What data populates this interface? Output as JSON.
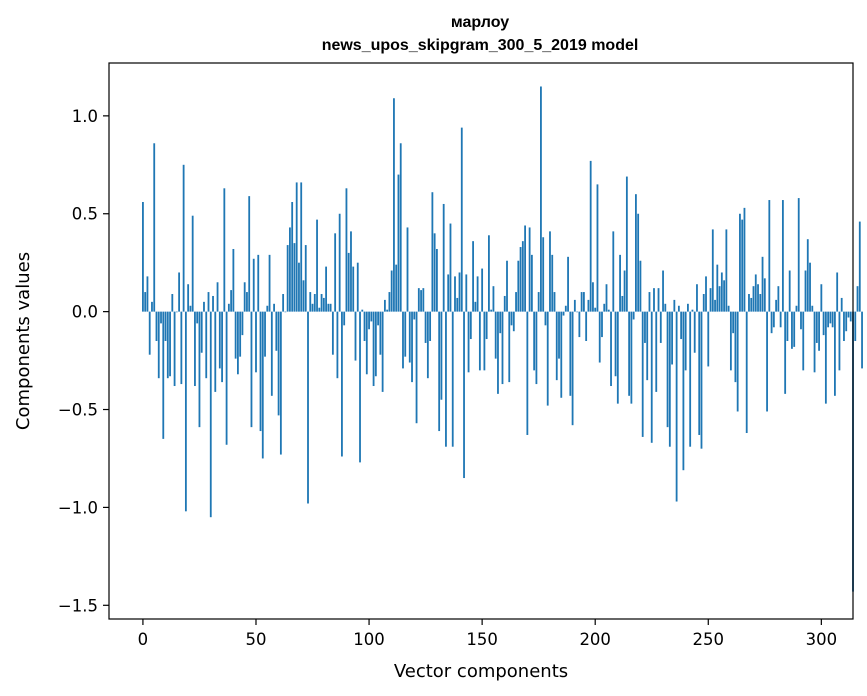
{
  "chart_data": {
    "type": "bar",
    "title_line1": "марлоу",
    "title_line2": "news_upos_skipgram_300_5_2019 model",
    "xlabel": "Vector components",
    "ylabel": "Components values",
    "xlim": [
      -15,
      314
    ],
    "ylim": [
      -1.57,
      1.27
    ],
    "xticks": [
      0,
      50,
      100,
      150,
      200,
      250,
      300
    ],
    "xtick_labels": [
      "0",
      "50",
      "100",
      "150",
      "200",
      "250",
      "300"
    ],
    "yticks": [
      -1.5,
      -1.0,
      -0.5,
      0.0,
      0.5,
      1.0
    ],
    "ytick_labels": [
      "−1.5",
      "−1.0",
      "−0.5",
      "0.0",
      "0.5",
      "1.0"
    ],
    "bar_color": "#1f77b4",
    "x_start": 0,
    "values": [
      0.56,
      0.1,
      0.18,
      -0.22,
      0.05,
      0.86,
      -0.15,
      -0.34,
      -0.06,
      -0.65,
      -0.15,
      -0.34,
      -0.33,
      0.09,
      -0.38,
      0.0,
      0.2,
      -0.37,
      0.75,
      -1.02,
      0.14,
      0.03,
      0.49,
      -0.38,
      -0.06,
      -0.59,
      -0.21,
      0.05,
      -0.34,
      0.1,
      -1.05,
      0.08,
      -0.41,
      0.15,
      -0.29,
      -0.36,
      0.63,
      -0.68,
      0.04,
      0.11,
      0.32,
      -0.24,
      -0.32,
      -0.23,
      -0.12,
      0.15,
      0.1,
      0.59,
      -0.59,
      0.27,
      -0.31,
      0.29,
      -0.61,
      -0.75,
      -0.23,
      0.03,
      0.29,
      -0.43,
      0.04,
      -0.2,
      -0.53,
      -0.73,
      0.09,
      0.0,
      0.34,
      0.43,
      0.56,
      0.35,
      0.66,
      0.25,
      0.66,
      0.16,
      0.34,
      -0.98,
      0.1,
      0.04,
      0.09,
      0.47,
      0.02,
      0.09,
      0.07,
      0.23,
      0.04,
      0.04,
      -0.22,
      0.4,
      -0.34,
      0.5,
      -0.74,
      -0.07,
      0.63,
      0.3,
      0.41,
      0.23,
      -0.25,
      0.25,
      -0.77,
      0.01,
      -0.15,
      -0.32,
      -0.09,
      -0.05,
      -0.38,
      -0.33,
      -0.07,
      -0.22,
      -0.41,
      0.06,
      0.01,
      0.1,
      0.21,
      1.09,
      0.24,
      0.7,
      0.86,
      -0.29,
      -0.23,
      0.43,
      -0.26,
      -0.36,
      -0.04,
      -0.57,
      0.12,
      0.11,
      0.12,
      -0.16,
      -0.34,
      -0.15,
      0.61,
      0.4,
      0.32,
      -0.61,
      -0.45,
      0.55,
      -0.69,
      0.19,
      0.45,
      -0.69,
      0.18,
      0.07,
      0.2,
      0.94,
      -0.85,
      0.19,
      -0.31,
      -0.14,
      0.36,
      0.05,
      0.18,
      -0.3,
      0.22,
      -0.3,
      -0.14,
      0.39,
      0.01,
      0.13,
      -0.24,
      -0.42,
      -0.11,
      -0.37,
      0.08,
      0.26,
      -0.36,
      -0.07,
      -0.1,
      0.1,
      0.26,
      0.33,
      0.36,
      0.44,
      -0.63,
      0.43,
      0.29,
      -0.3,
      -0.37,
      0.1,
      1.15,
      0.38,
      -0.07,
      -0.48,
      0.41,
      0.29,
      0.1,
      -0.35,
      -0.24,
      -0.44,
      -0.02,
      0.03,
      0.28,
      -0.43,
      -0.58,
      0.06,
      0.0,
      -0.13,
      0.1,
      0.1,
      -0.15,
      0.06,
      0.77,
      0.15,
      0.02,
      0.65,
      -0.26,
      -0.13,
      0.04,
      0.14,
      0.01,
      -0.38,
      0.41,
      -0.33,
      -0.47,
      0.29,
      0.08,
      0.21,
      0.69,
      -0.43,
      -0.47,
      -0.04,
      0.6,
      0.5,
      0.26,
      -0.64,
      -0.16,
      -0.35,
      0.1,
      -0.67,
      0.12,
      -0.41,
      0.12,
      -0.16,
      0.21,
      0.04,
      -0.59,
      -0.69,
      -0.27,
      0.06,
      -0.97,
      0.03,
      -0.14,
      -0.81,
      -0.3,
      0.04,
      -0.69,
      0.01,
      -0.21,
      0.14,
      -0.63,
      -0.7,
      0.09,
      0.18,
      -0.28,
      0.12,
      0.42,
      0.06,
      0.24,
      0.13,
      0.2,
      0.16,
      0.42,
      0.03,
      -0.3,
      -0.11,
      -0.36,
      -0.51,
      0.5,
      0.47,
      0.53,
      -0.62,
      0.09,
      0.07,
      0.13,
      0.19,
      0.14,
      0.09,
      0.28,
      0.17,
      -0.51,
      0.57,
      -0.11,
      -0.08,
      0.06,
      0.13,
      -0.08,
      0.57,
      -0.42,
      -0.15,
      0.21,
      -0.19,
      -0.18,
      0.03,
      0.58,
      -0.09,
      -0.3,
      0.21,
      0.37,
      0.25,
      0.03,
      -0.31,
      -0.16,
      -0.2,
      0.14,
      -0.12,
      -0.47,
      -0.08,
      -0.06,
      -0.08,
      -0.43,
      0.2,
      -0.3,
      0.07,
      -0.15,
      -0.1,
      -0.03,
      -0.05,
      -1.43,
      -0.15,
      0.13,
      0.46,
      -0.29
    ]
  }
}
